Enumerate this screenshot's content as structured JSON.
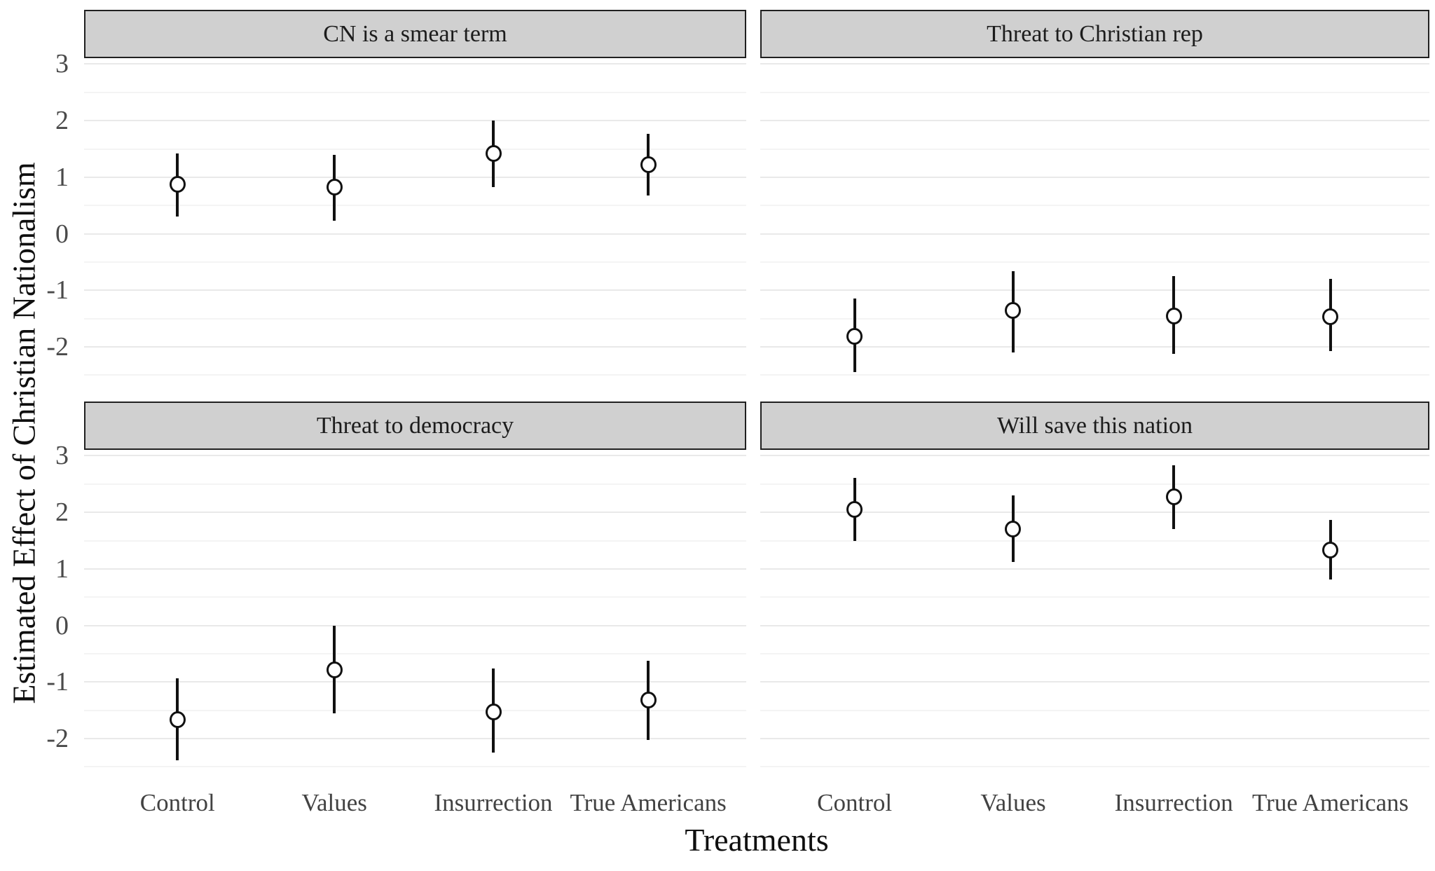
{
  "figure": {
    "y_axis_title": "Estimated Effect of Christian Nationalism",
    "x_axis_title": "Treatments",
    "y_ticks": [
      "3",
      "2",
      "1",
      "0",
      "-1",
      "-2"
    ],
    "x_tick_labels": [
      "Control",
      "Values",
      "Insurrection",
      "True Americans"
    ]
  },
  "chart_data": {
    "type": "scatter",
    "subtype": "faceted-point-range",
    "title": "",
    "xlabel": "Treatments",
    "ylabel": "Estimated Effect of Christian Nationalism",
    "categories": [
      "Control",
      "Values",
      "Insurrection",
      "True Americans"
    ],
    "y_axis": {
      "tick_values": [
        3,
        2,
        1,
        0,
        -1,
        -2
      ],
      "range": [
        -2.8,
        3.1
      ],
      "minor_gridlines": [
        2.5,
        1.5,
        0.5,
        -0.5,
        -1.5,
        -2.5
      ],
      "grid": "on"
    },
    "facets": [
      {
        "title": "CN is a smear term",
        "row": 0,
        "col": 0,
        "points": [
          {
            "treatment": "Control",
            "estimate": 0.87,
            "ci_low": 0.31,
            "ci_high": 1.42
          },
          {
            "treatment": "Values",
            "estimate": 0.82,
            "ci_low": 0.23,
            "ci_high": 1.4
          },
          {
            "treatment": "Insurrection",
            "estimate": 1.42,
            "ci_low": 0.83,
            "ci_high": 2.0
          },
          {
            "treatment": "True Americans",
            "estimate": 1.22,
            "ci_low": 0.68,
            "ci_high": 1.77
          }
        ]
      },
      {
        "title": "Threat to Christian rep",
        "row": 0,
        "col": 1,
        "points": [
          {
            "treatment": "Control",
            "estimate": -1.82,
            "ci_low": -2.45,
            "ci_high": -1.15
          },
          {
            "treatment": "Values",
            "estimate": -1.36,
            "ci_low": -2.1,
            "ci_high": -0.66
          },
          {
            "treatment": "Insurrection",
            "estimate": -1.45,
            "ci_low": -2.13,
            "ci_high": -0.75
          },
          {
            "treatment": "True Americans",
            "estimate": -1.47,
            "ci_low": -2.08,
            "ci_high": -0.8
          }
        ]
      },
      {
        "title": "Threat to democracy",
        "row": 1,
        "col": 0,
        "points": [
          {
            "treatment": "Control",
            "estimate": -1.67,
            "ci_low": -2.39,
            "ci_high": -0.94
          },
          {
            "treatment": "Values",
            "estimate": -0.79,
            "ci_low": -1.55,
            "ci_high": 0.0
          },
          {
            "treatment": "Insurrection",
            "estimate": -1.53,
            "ci_low": -2.25,
            "ci_high": -0.76
          },
          {
            "treatment": "True Americans",
            "estimate": -1.32,
            "ci_low": -2.02,
            "ci_high": -0.62
          }
        ]
      },
      {
        "title": "Will save this nation",
        "row": 1,
        "col": 1,
        "points": [
          {
            "treatment": "Control",
            "estimate": 2.05,
            "ci_low": 1.5,
            "ci_high": 2.61
          },
          {
            "treatment": "Values",
            "estimate": 1.71,
            "ci_low": 1.12,
            "ci_high": 2.3
          },
          {
            "treatment": "Insurrection",
            "estimate": 2.28,
            "ci_low": 1.7,
            "ci_high": 2.83
          },
          {
            "treatment": "True Americans",
            "estimate": 1.33,
            "ci_low": 0.81,
            "ci_high": 1.86
          }
        ]
      }
    ],
    "colors": {
      "strip_fill": "#d0d0d0",
      "strip_border": "#202020",
      "grid_major": "#e9e9e9",
      "grid_minor": "#f4f4f4",
      "marker_fill": "#ffffff",
      "marker_stroke": "#111111",
      "tick_label": "#4a4a4a",
      "axis_title": "#0f0f0f"
    },
    "legend": "none"
  }
}
